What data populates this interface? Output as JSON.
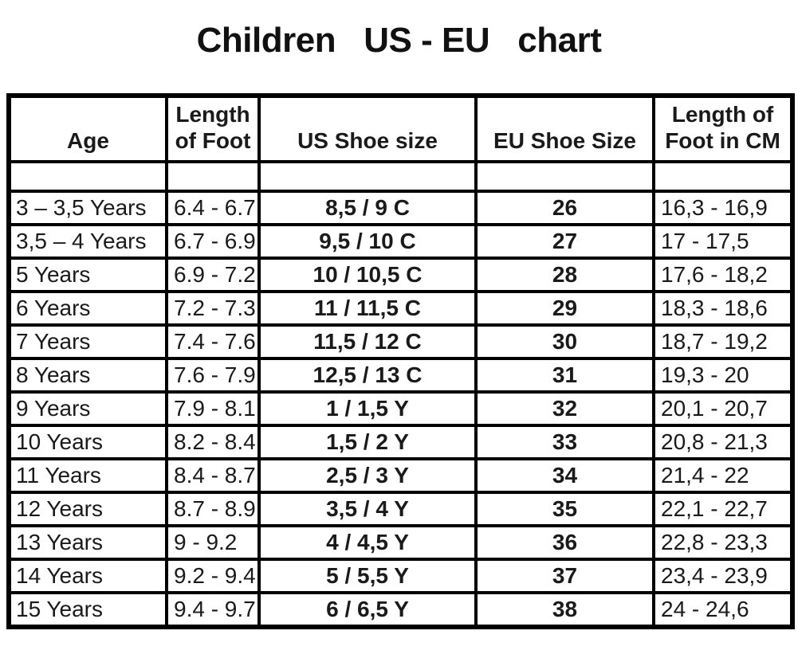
{
  "page_title": "Children   US - EU   chart",
  "chart_data": {
    "type": "table",
    "title": "Children US - EU chart",
    "columns": [
      "Age",
      "Length of Foot",
      "US Shoe size",
      "EU Shoe Size",
      "Length of Foot in CM"
    ],
    "column_display": [
      "Age",
      "Length\nof Foot",
      "US Shoe size",
      "EU Shoe Size",
      "Length of\nFoot in CM"
    ],
    "rows": [
      [
        "3 – 3,5 Years",
        "6.4 - 6.7",
        "8,5 / 9 C",
        "26",
        "16,3 - 16,9"
      ],
      [
        "3,5 – 4 Years",
        "6.7 - 6.9",
        "9,5 / 10 C",
        "27",
        "17 - 17,5"
      ],
      [
        "5 Years",
        "6.9 - 7.2",
        "10 / 10,5 C",
        "28",
        "17,6 - 18,2"
      ],
      [
        "6 Years",
        "7.2 - 7.3",
        "11 / 11,5 C",
        "29",
        "18,3 - 18,6"
      ],
      [
        "7 Years",
        "7.4 - 7.6",
        "11,5 / 12 C",
        "30",
        "18,7 - 19,2"
      ],
      [
        "8 Years",
        "7.6 - 7.9",
        "12,5 / 13 C",
        "31",
        "19,3 - 20"
      ],
      [
        "9 Years",
        "7.9 - 8.1",
        "1 / 1,5 Y",
        "32",
        "20,1 - 20,7"
      ],
      [
        "10 Years",
        "8.2 - 8.4",
        "1,5 / 2 Y",
        "33",
        "20,8 - 21,3"
      ],
      [
        "11 Years",
        "8.4 - 8.7",
        "2,5 / 3 Y",
        "34",
        "21,4 - 22"
      ],
      [
        "12 Years",
        "8.7 - 8.9",
        "3,5 / 4 Y",
        "35",
        "22,1 - 22,7"
      ],
      [
        "13 Years",
        "9 - 9.2",
        "4 / 4,5 Y",
        "36",
        "22,8 - 23,3"
      ],
      [
        "14 Years",
        "9.2 - 9.4",
        "5 / 5,5 Y",
        "37",
        "23,4 - 23,9"
      ],
      [
        "15 Years",
        "9.4 - 9.7",
        "6 / 6,5 Y",
        "38",
        "24 - 24,6"
      ]
    ],
    "border_color": "#000000",
    "text_color": "#1a1a1a",
    "background_color": "#ffffff"
  }
}
